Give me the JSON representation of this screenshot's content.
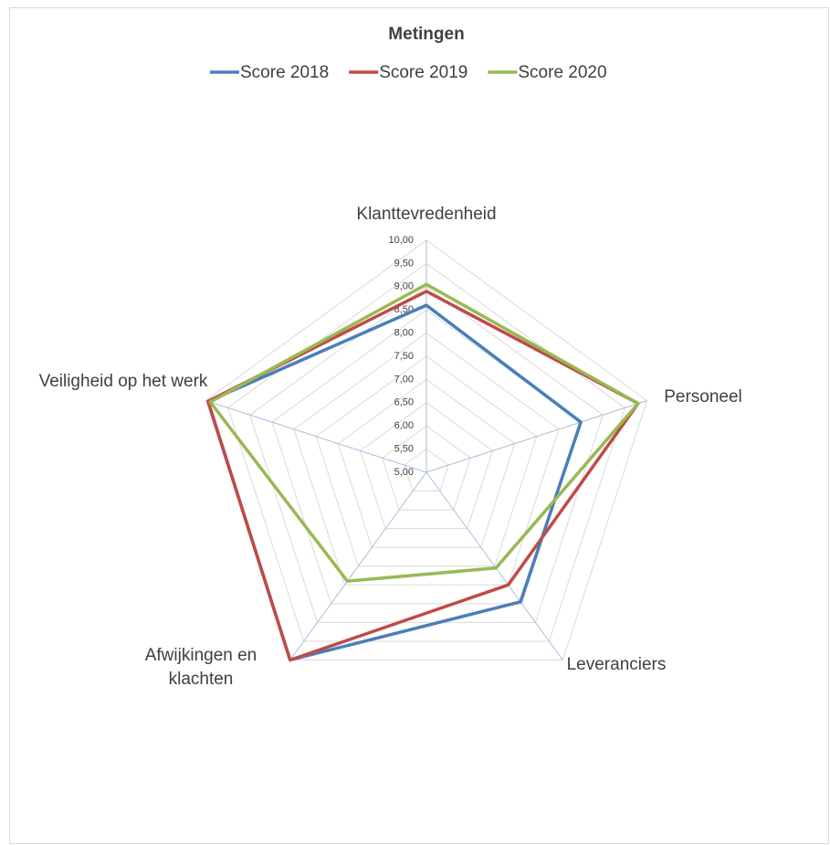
{
  "chart_data": {
    "type": "radar",
    "title": "Metingen",
    "categories": [
      "Klanttevredenheid",
      "Personeel",
      "Leveranciers",
      "Afwijkingen en klachten",
      "Veiligheid op het werk"
    ],
    "series": [
      {
        "name": "Score 2018",
        "color": "#4a7ebb",
        "values": [
          8.6,
          8.5,
          8.45,
          10.0,
          9.95
        ]
      },
      {
        "name": "Score 2019",
        "color": "#be4b48",
        "values": [
          8.9,
          9.8,
          8.0,
          10.0,
          9.95
        ]
      },
      {
        "name": "Score 2020",
        "color": "#98b954",
        "values": [
          9.05,
          9.8,
          7.55,
          7.9,
          9.9
        ]
      }
    ],
    "ylim": [
      5,
      10
    ],
    "yticks": [
      {
        "value": 5,
        "label": "5,00"
      },
      {
        "value": 5.5,
        "label": "5,50"
      },
      {
        "value": 6,
        "label": "6,00"
      },
      {
        "value": 6.5,
        "label": "6,50"
      },
      {
        "value": 7,
        "label": "7,00"
      },
      {
        "value": 7.5,
        "label": "7,50"
      },
      {
        "value": 8,
        "label": "8,00"
      },
      {
        "value": 8.5,
        "label": "8,50"
      },
      {
        "value": 9,
        "label": "9,00"
      },
      {
        "value": 9.5,
        "label": "9,50"
      },
      {
        "value": 10,
        "label": "10,00"
      }
    ],
    "grid": true,
    "legend": "top"
  }
}
